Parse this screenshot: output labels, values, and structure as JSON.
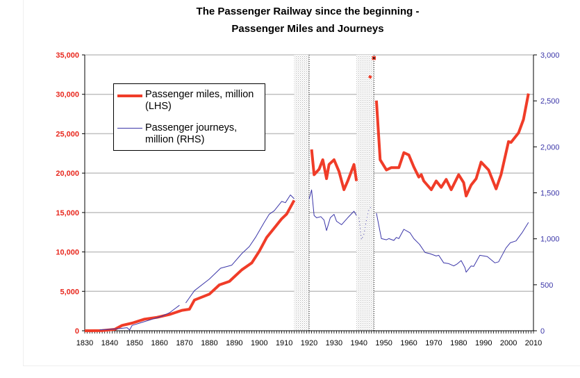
{
  "chart_data": {
    "type": "line",
    "title_line1": "The Passenger Railway since the beginning -",
    "title_line2": "Passenger Miles and Journeys",
    "xlabel": "",
    "ylabel_left": "",
    "ylabel_right": "",
    "xlim": [
      1830,
      2010
    ],
    "ylim_left": [
      0,
      35000
    ],
    "ylim_right": [
      0,
      3000
    ],
    "x_ticks": [
      "1830",
      "1840",
      "1850",
      "1860",
      "1870",
      "1880",
      "1890",
      "1900",
      "1910",
      "1920",
      "1930",
      "1940",
      "1950",
      "1960",
      "1970",
      "1980",
      "1990",
      "2000",
      "2010"
    ],
    "y_left_ticks": [
      "0",
      "5,000",
      "10,000",
      "15,000",
      "20,000",
      "25,000",
      "30,000",
      "35,000"
    ],
    "y_right_ticks": [
      "0",
      "500",
      "1,000",
      "1,500",
      "2,000",
      "2,500",
      "3,000"
    ],
    "grid": "horizontal",
    "legend_position": "top-left",
    "shaded_periods": [
      [
        1914,
        1920
      ],
      [
        1939,
        1946
      ]
    ],
    "colors": {
      "miles": "#f03c28",
      "journeys": "#3a35a8",
      "left_axis": "#e8281e",
      "right_axis": "#3a35a8",
      "grid": "#c0c0c0",
      "shade": "#d8d8d8"
    },
    "series": [
      {
        "name": "Passenger miles, million (LHS)",
        "axis": "left",
        "segments": [
          [
            [
              1830,
              0
            ],
            [
              1837,
              30
            ],
            [
              1842,
              180
            ],
            [
              1845,
              680
            ],
            [
              1849,
              970
            ],
            [
              1854,
              1470
            ],
            [
              1859,
              1700
            ],
            [
              1864,
              2060
            ],
            [
              1869,
              2590
            ],
            [
              1872,
              2730
            ],
            [
              1874,
              3900
            ],
            [
              1880,
              4650
            ],
            [
              1884,
              5820
            ],
            [
              1888,
              6260
            ],
            [
              1893,
              7730
            ],
            [
              1897,
              8610
            ],
            [
              1900,
              10080
            ],
            [
              1903,
              11850
            ],
            [
              1906,
              13020
            ],
            [
              1909,
              14200
            ],
            [
              1911,
              14800
            ],
            [
              1914,
              16550
            ]
          ],
          [
            [
              1921,
              23000
            ],
            [
              1922,
              19800
            ],
            [
              1924,
              20500
            ],
            [
              1925.5,
              21700
            ],
            [
              1927,
              19300
            ],
            [
              1928,
              21100
            ],
            [
              1930,
              21700
            ],
            [
              1932,
              20200
            ],
            [
              1934,
              17900
            ],
            [
              1935.5,
              19000
            ],
            [
              1938,
              21100
            ],
            [
              1939,
              19000
            ]
          ],
          [
            [
              1944,
              32300
            ],
            [
              1945,
              32100
            ]
          ],
          [
            [
              1946,
              34600
            ]
          ],
          [
            [
              1947,
              29200
            ],
            [
              1948.5,
              21700
            ],
            [
              1951,
              20400
            ],
            [
              1953,
              20700
            ],
            [
              1956,
              20700
            ],
            [
              1958,
              22600
            ],
            [
              1960,
              22300
            ],
            [
              1962,
              20800
            ],
            [
              1964,
              19500
            ],
            [
              1965,
              19800
            ],
            [
              1966,
              19000
            ],
            [
              1969,
              17900
            ],
            [
              1971,
              19000
            ],
            [
              1973,
              18200
            ],
            [
              1975,
              19200
            ],
            [
              1977,
              17900
            ],
            [
              1980,
              19800
            ],
            [
              1982,
              18800
            ],
            [
              1983,
              17100
            ],
            [
              1985,
              18500
            ],
            [
              1987,
              19300
            ],
            [
              1989,
              21400
            ],
            [
              1992,
              20400
            ],
            [
              1995,
              18000
            ],
            [
              1997,
              19800
            ],
            [
              2000,
              24000
            ],
            [
              2001,
              23900
            ],
            [
              2004,
              25100
            ],
            [
              2006,
              26800
            ],
            [
              2008,
              30100
            ]
          ]
        ]
      },
      {
        "name": "Passenger journeys, million (RHS)",
        "axis": "right",
        "segments": [
          [
            [
              1836,
              10
            ],
            [
              1842.5,
              20
            ],
            [
              1847,
              33
            ],
            [
              1848,
              8
            ],
            [
              1849,
              58
            ],
            [
              1852,
              83
            ],
            [
              1856.5,
              121
            ],
            [
              1861,
              159
            ],
            [
              1864,
              196
            ],
            [
              1868,
              277
            ]
          ],
          [
            [
              1870.5,
              302
            ],
            [
              1874,
              436
            ],
            [
              1880,
              562
            ],
            [
              1884.5,
              680
            ],
            [
              1889,
              713
            ],
            [
              1893,
              839
            ],
            [
              1896,
              915
            ],
            [
              1898.5,
              1015
            ],
            [
              1902,
              1179
            ],
            [
              1904,
              1267
            ],
            [
              1906,
              1305
            ],
            [
              1909,
              1406
            ],
            [
              1910.5,
              1393
            ],
            [
              1912.5,
              1477
            ],
            [
              1914,
              1436
            ]
          ],
          [
            [
              1920,
              1431
            ],
            [
              1921,
              1532
            ],
            [
              1922,
              1254
            ],
            [
              1923,
              1229
            ],
            [
              1924.7,
              1241
            ],
            [
              1926,
              1204
            ],
            [
              1927,
              1090
            ],
            [
              1928.5,
              1229
            ],
            [
              1930,
              1266
            ],
            [
              1931,
              1191
            ],
            [
              1933,
              1153
            ],
            [
              1935.5,
              1229
            ],
            [
              1938,
              1300
            ],
            [
              1939,
              1254
            ]
          ],
          [
            [
              1940,
              1229
            ],
            [
              1941,
              989
            ],
            [
              1942,
              1052
            ],
            [
              1943,
              1204
            ],
            [
              1944,
              1317
            ],
            [
              1945,
              1355
            ]
          ],
          [
            [
              1947,
              1279
            ],
            [
              1949,
              1002
            ],
            [
              1951,
              989
            ],
            [
              1952,
              1002
            ],
            [
              1954,
              982
            ],
            [
              1955,
              1015
            ],
            [
              1956,
              1002
            ],
            [
              1958,
              1103
            ],
            [
              1960.5,
              1065
            ],
            [
              1962,
              1002
            ],
            [
              1964.3,
              939
            ],
            [
              1966.5,
              851
            ],
            [
              1968.5,
              838
            ],
            [
              1971,
              813
            ],
            [
              1972,
              821
            ],
            [
              1974,
              738
            ],
            [
              1976,
              730
            ],
            [
              1978,
              705
            ],
            [
              1979.3,
              725
            ],
            [
              1981,
              763
            ],
            [
              1982.5,
              687
            ],
            [
              1983,
              637
            ],
            [
              1985,
              705
            ],
            [
              1986,
              700
            ],
            [
              1988.5,
              821
            ],
            [
              1991.5,
              806
            ],
            [
              1994.5,
              738
            ],
            [
              1996,
              750
            ],
            [
              1999,
              901
            ],
            [
              2000.7,
              957
            ],
            [
              2003,
              977
            ],
            [
              2005.4,
              1065
            ],
            [
              2008,
              1178
            ]
          ]
        ]
      }
    ],
    "legend": [
      {
        "line1": "Passenger miles, million",
        "line2": "(LHS)"
      },
      {
        "line1": "Passenger journeys,",
        "line2": "million (RHS)"
      }
    ]
  }
}
